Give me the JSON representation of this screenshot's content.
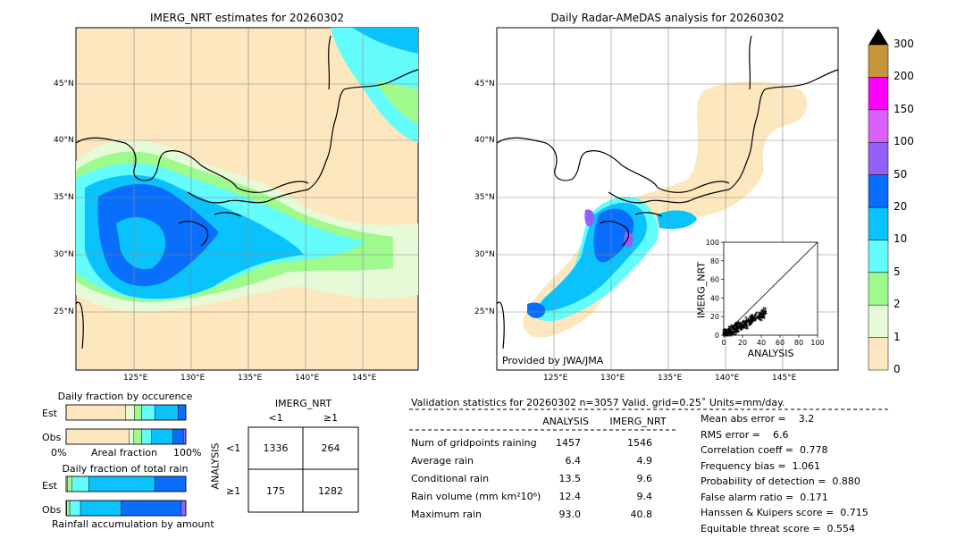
{
  "left_map": {
    "title": "IMERG_NRT estimates for 20260302",
    "lat_labels": [
      "45°N",
      "40°N",
      "35°N",
      "30°N",
      "25°N"
    ],
    "lon_labels": [
      "125°E",
      "130°E",
      "135°E",
      "140°E",
      "145°E"
    ]
  },
  "right_map": {
    "title": "Daily Radar-AMeDAS analysis for 20260302",
    "lat_labels": [
      "45°N",
      "40°N",
      "35°N",
      "30°N",
      "25°N"
    ],
    "lon_labels": [
      "125°E",
      "130°E",
      "135°E",
      "140°E",
      "145°E"
    ],
    "credit": "Provided by JWA/JMA"
  },
  "colorbar": {
    "levels": [
      "0",
      "1",
      "2",
      "5",
      "10",
      "20",
      "50",
      "100",
      "150",
      "200",
      "300"
    ],
    "colors": [
      "#fde7bf",
      "#e6fad7",
      "#9efa8c",
      "#63fcfa",
      "#0ac2fc",
      "#0a6efc",
      "#9460fa",
      "#db60fa",
      "#ff00fb",
      "#c8963a"
    ],
    "overflow_color": "#000000"
  },
  "occurrence_panel": {
    "title": "Daily fraction by occurence",
    "rows": [
      "Est",
      "Obs"
    ],
    "x_left": "0%",
    "x_mid": "Areal fraction",
    "x_right": "100%"
  },
  "amount_panel": {
    "title": "Daily fraction of total rain",
    "rows": [
      "Est",
      "Obs"
    ],
    "footer": "Rainfall accumulation by amount"
  },
  "contingency": {
    "col_title": "IMERG_NRT",
    "col_labels": [
      "<1",
      "≥1"
    ],
    "row_title": "ANALYSIS",
    "row_labels": [
      "<1",
      "≥1"
    ],
    "cells": [
      [
        "1336",
        "264"
      ],
      [
        "175",
        "1282"
      ]
    ]
  },
  "validation": {
    "header": "Validation statistics for 20260302  n=3057 Valid. grid=0.25˚ Units=mm/day.",
    "col_analysis": "ANALYSIS",
    "col_imerg": "IMERG_NRT",
    "rows": [
      {
        "label": "Num of gridpoints raining",
        "analysis": "1457",
        "imerg": "1546"
      },
      {
        "label": "Average rain",
        "analysis": "6.4",
        "imerg": "4.9"
      },
      {
        "label": "Conditional rain",
        "analysis": "13.5",
        "imerg": "9.6"
      },
      {
        "label": "Rain volume (mm km²10⁶)",
        "analysis": "12.4",
        "imerg": "9.4"
      },
      {
        "label": "Maximum rain",
        "analysis": "93.0",
        "imerg": "40.8"
      }
    ],
    "scores": [
      "Mean abs error =    3.2",
      "RMS error =    6.6",
      "Correlation coeff =  0.778",
      "Frequency bias =  1.061",
      "Probability of detection =  0.880",
      "False alarm ratio =  0.171",
      "Hanssen & Kuipers score =  0.715",
      "Equitable threat score =  0.554"
    ]
  },
  "chart_data": [
    {
      "type": "heatmap",
      "title": "IMERG_NRT estimates for 20260302",
      "xlabel": "",
      "ylabel": "",
      "xlim": [
        120,
        150
      ],
      "ylim": [
        20,
        50
      ],
      "lon_ticks": [
        125,
        130,
        135,
        140,
        145
      ],
      "lat_ticks": [
        25,
        30,
        35,
        40,
        45
      ],
      "units": "mm/day"
    },
    {
      "type": "heatmap",
      "title": "Daily Radar-AMeDAS analysis for 20260302",
      "xlabel": "",
      "ylabel": "",
      "xlim": [
        120,
        150
      ],
      "ylim": [
        20,
        50
      ],
      "lon_ticks": [
        125,
        130,
        135,
        140,
        145
      ],
      "lat_ticks": [
        25,
        30,
        35,
        40,
        45
      ],
      "units": "mm/day"
    },
    {
      "type": "scatter",
      "title": "",
      "xlabel": "ANALYSIS",
      "ylabel": "IMERG_NRT",
      "xlim": [
        0,
        100
      ],
      "ylim": [
        0,
        100
      ],
      "xticks": [
        0,
        20,
        40,
        60,
        80,
        100
      ],
      "yticks": [
        0,
        20,
        40,
        60,
        80,
        100
      ]
    },
    {
      "type": "bar",
      "title": "Daily fraction by occurence",
      "categories": [
        "Est",
        "Obs"
      ],
      "series": [
        {
          "color": "#fde7bf",
          "values": [
            0.495,
            0.525
          ]
        },
        {
          "color": "#e6fad7",
          "values": [
            0.075,
            0.04
          ]
        },
        {
          "color": "#9efa8c",
          "values": [
            0.06,
            0.065
          ]
        },
        {
          "color": "#63fcfa",
          "values": [
            0.11,
            0.085
          ]
        },
        {
          "color": "#0ac2fc",
          "values": [
            0.195,
            0.175
          ]
        },
        {
          "color": "#0a6efc",
          "values": [
            0.065,
            0.09
          ]
        },
        {
          "color": "#9460fa",
          "values": [
            0,
            0.02
          ]
        }
      ]
    },
    {
      "type": "bar",
      "title": "Daily fraction of total rain",
      "categories": [
        "Est",
        "Obs"
      ],
      "series": [
        {
          "color": "#e6fad7",
          "values": [
            0.01,
            0.005
          ]
        },
        {
          "color": "#9efa8c",
          "values": [
            0.04,
            0.025
          ]
        },
        {
          "color": "#63fcfa",
          "values": [
            0.14,
            0.09
          ]
        },
        {
          "color": "#0ac2fc",
          "values": [
            0.55,
            0.34
          ]
        },
        {
          "color": "#0a6efc",
          "values": [
            0.26,
            0.5
          ]
        },
        {
          "color": "#9460fa",
          "values": [
            0,
            0.04
          ]
        }
      ]
    }
  ]
}
